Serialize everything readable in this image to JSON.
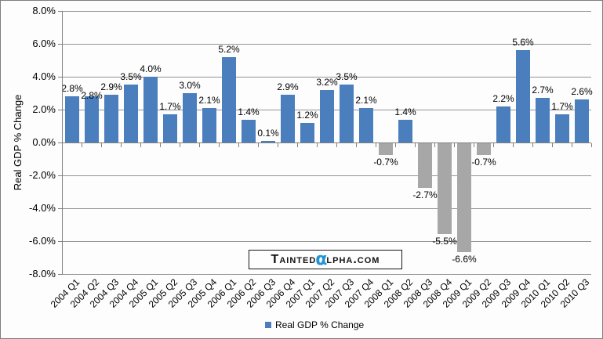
{
  "chart_data": {
    "type": "bar",
    "title": "",
    "xlabel": "",
    "ylabel": "Real GDP % Change",
    "categories": [
      "2004 Q1",
      "2004 Q2",
      "2004 Q3",
      "2004 Q4",
      "2005 Q1",
      "2005 Q2",
      "2005 Q3",
      "2005 Q4",
      "2006 Q1",
      "2006 Q2",
      "2006 Q3",
      "2006 Q4",
      "2007 Q1",
      "2007 Q2",
      "2007 Q3",
      "2007 Q4",
      "2008 Q1",
      "2008 Q2",
      "2008 Q3",
      "2008 Q4",
      "2009 Q1",
      "2009 Q2",
      "2009 Q3",
      "2009 Q4",
      "2010 Q1",
      "2010 Q2",
      "2010 Q3"
    ],
    "values": [
      2.8,
      2.8,
      2.9,
      3.5,
      4.0,
      1.7,
      3.0,
      2.1,
      5.2,
      1.4,
      0.1,
      2.9,
      1.2,
      3.2,
      3.5,
      2.1,
      -0.7,
      1.4,
      -2.7,
      -5.5,
      -6.6,
      -0.7,
      2.2,
      5.6,
      2.7,
      1.7,
      2.6
    ],
    "data_labels": [
      "2.8%",
      "2.8%",
      "2.9%",
      "3.5%",
      "4.0%",
      "1.7%",
      "3.0%",
      "2.1%",
      "5.2%",
      "1.4%",
      "0.1%",
      "2.9%",
      "1.2%",
      "3.2%",
      "3.5%",
      "2.1%",
      "-0.7%",
      "1.4%",
      "-2.7%",
      "-5.5%",
      "-6.6%",
      "-0.7%",
      "2.2%",
      "5.6%",
      "2.7%",
      "1.7%",
      "2.6%"
    ],
    "yticks": [
      "8.0%",
      "6.0%",
      "4.0%",
      "2.0%",
      "0.0%",
      "-2.0%",
      "-4.0%",
      "-6.0%",
      "-8.0%"
    ],
    "ylim": [
      -8,
      8
    ],
    "ytick_step": 2,
    "grid": true,
    "legend": {
      "label": "Real GDP % Change",
      "position": "bottom"
    },
    "colors": {
      "positive_bar": "#4a7ebc",
      "negative_bar": "#a7a7a7",
      "gridline": "#949494",
      "axis": "#808080",
      "background": "#fdfdfd",
      "text": "#000000"
    }
  },
  "watermark": {
    "prefix": "Tainted",
    "alpha": "α",
    "suffix": "lpha.com",
    "alpha_color": "#2196d3"
  }
}
